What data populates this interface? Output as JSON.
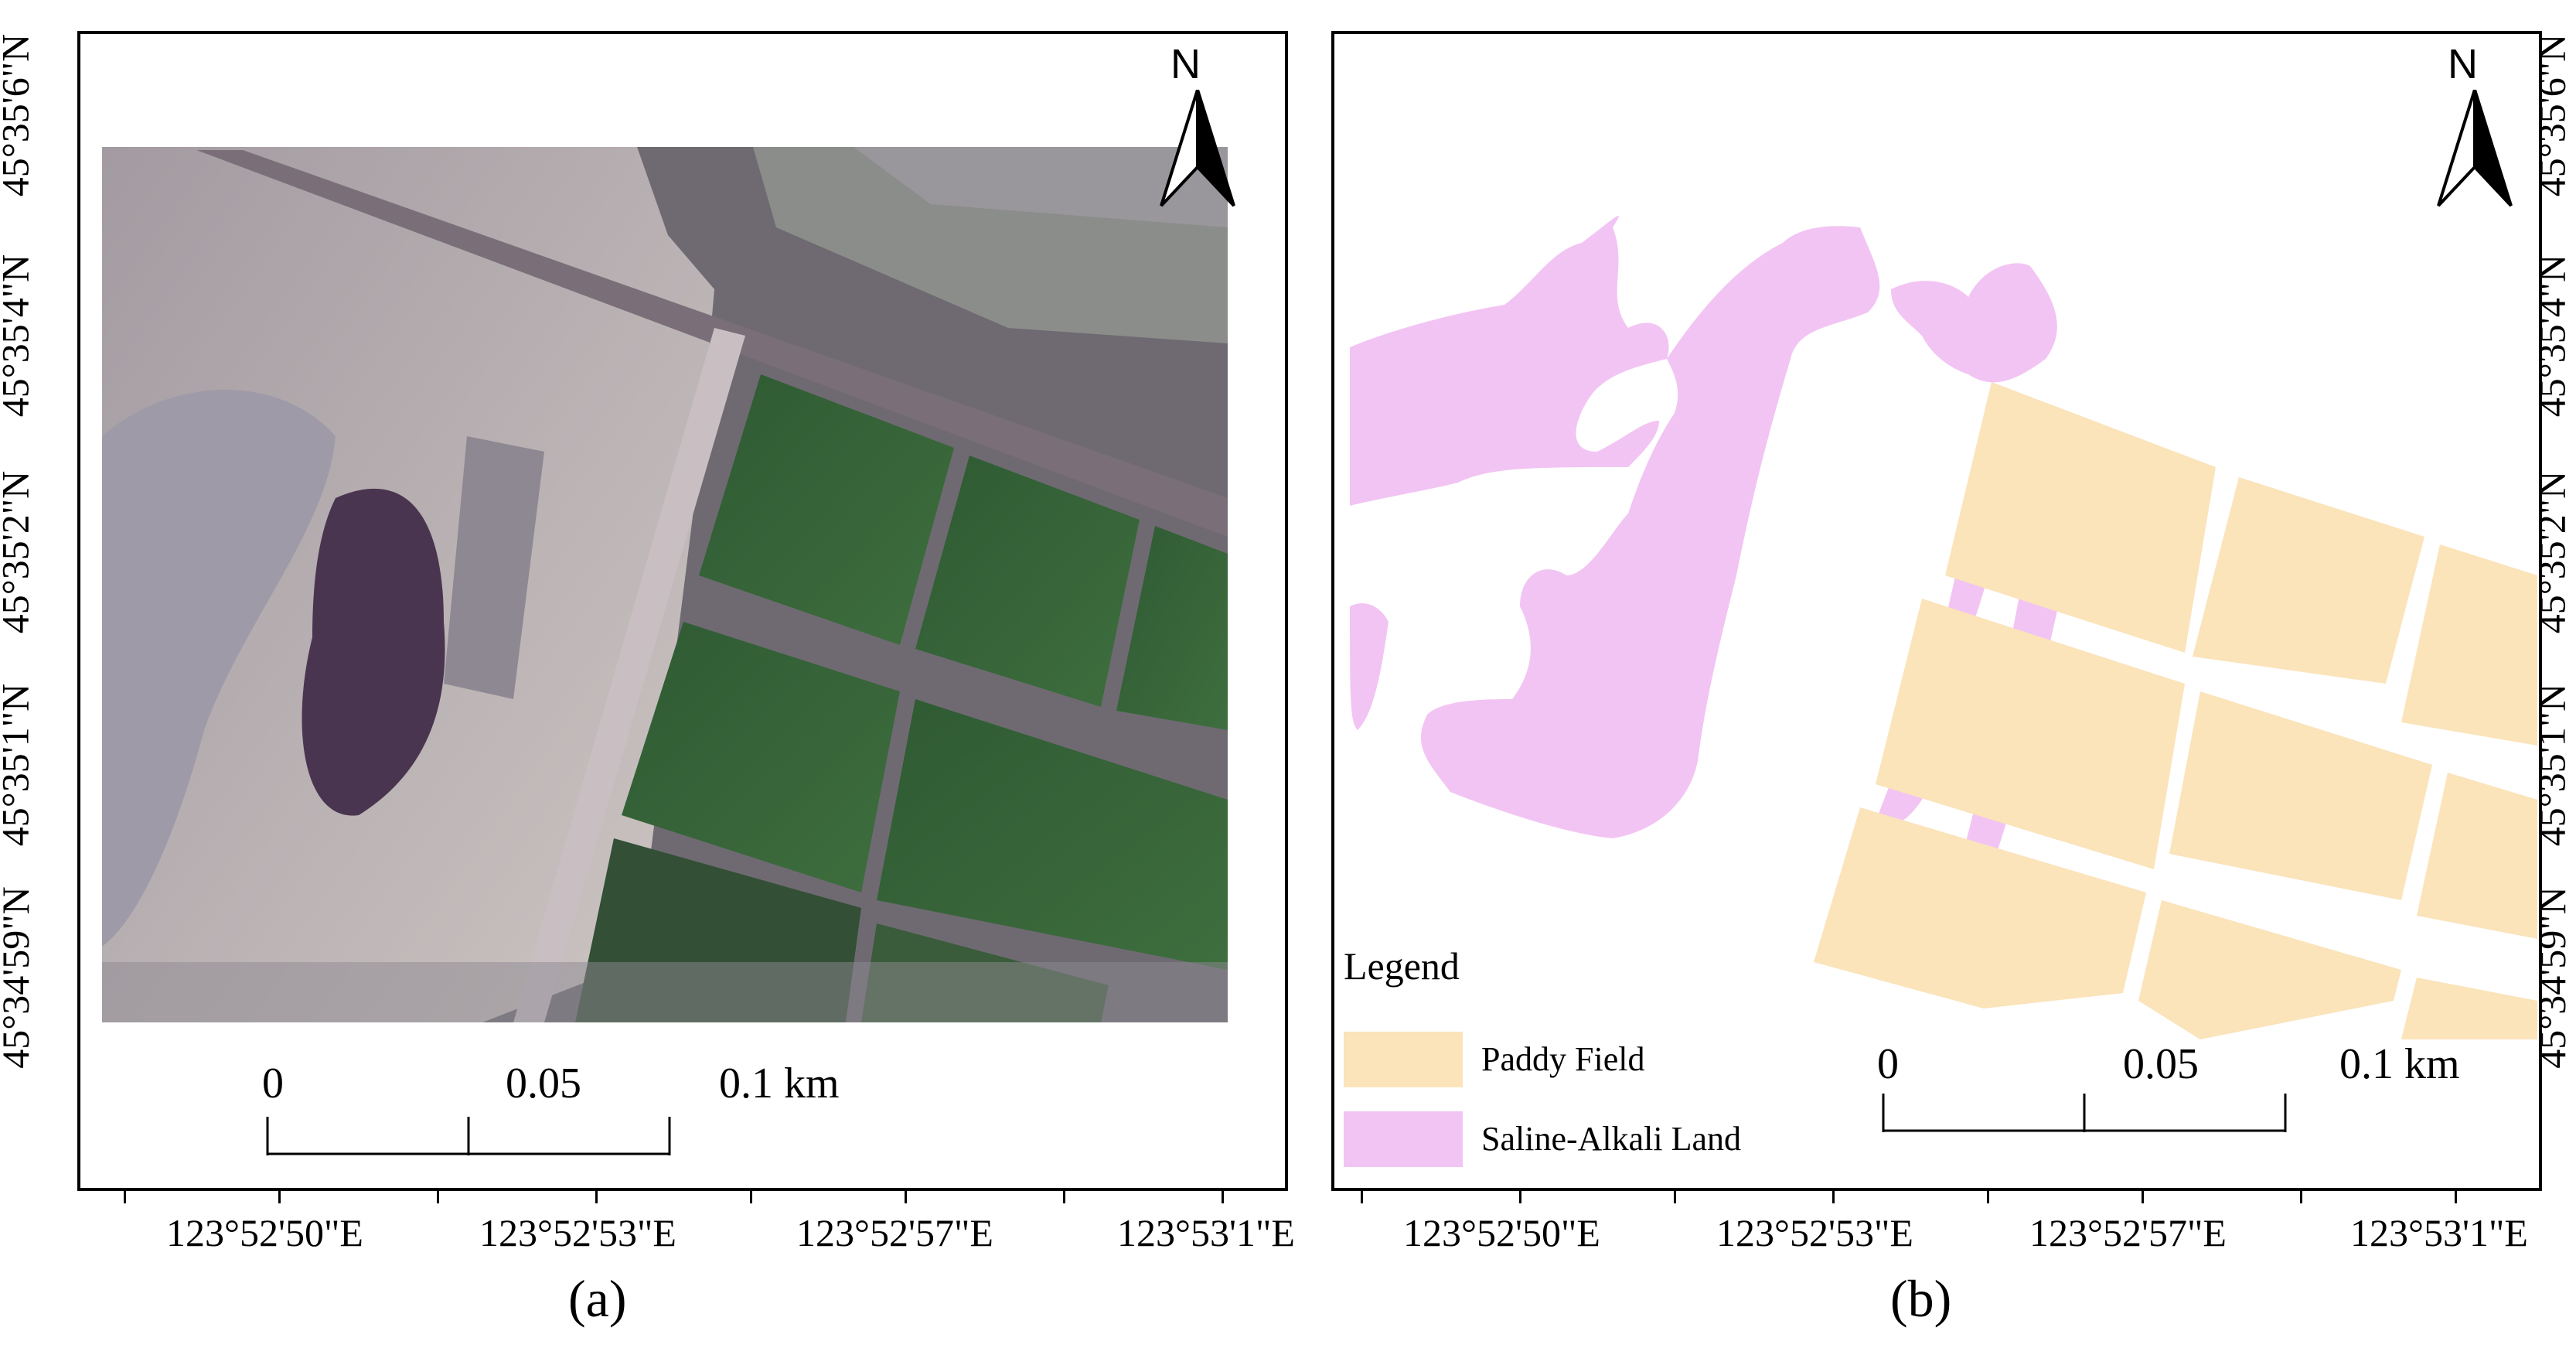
{
  "panels": [
    {
      "caption": "(a)",
      "lat_labels": [
        "45°35'6\"N",
        "45°35'4\"N",
        "45°35'2\"N",
        "45°35'1\"N",
        "45°34'59\"N"
      ],
      "lon_labels": [
        "123°52'50\"E",
        "123°52'53\"E",
        "123°52'57\"E",
        "123°53'1\"E"
      ],
      "scale": {
        "labels": [
          "0",
          "0.05",
          "0.1 km"
        ]
      },
      "north_label": "N"
    },
    {
      "caption": "(b)",
      "lat_labels": [
        "45°35'6\"N",
        "45°35'4\"N",
        "45°35'2\"N",
        "45°35'1\"N",
        "45°34'59\"N"
      ],
      "lon_labels": [
        "123°52'50\"E",
        "123°52'53\"E",
        "123°52'57\"E",
        "123°53'1\"E"
      ],
      "scale": {
        "labels": [
          "0",
          "0.05",
          "0.1 km"
        ]
      },
      "north_label": "N",
      "legend": {
        "title": "Legend",
        "items": [
          {
            "label": "Paddy Field",
            "color": "#fbe3ba"
          },
          {
            "label": "Saline-Alkali Land",
            "color": "#f2c4f3"
          }
        ]
      }
    }
  ],
  "colors": {
    "paddy": "#fbe3ba",
    "saline": "#f2c4f3"
  }
}
